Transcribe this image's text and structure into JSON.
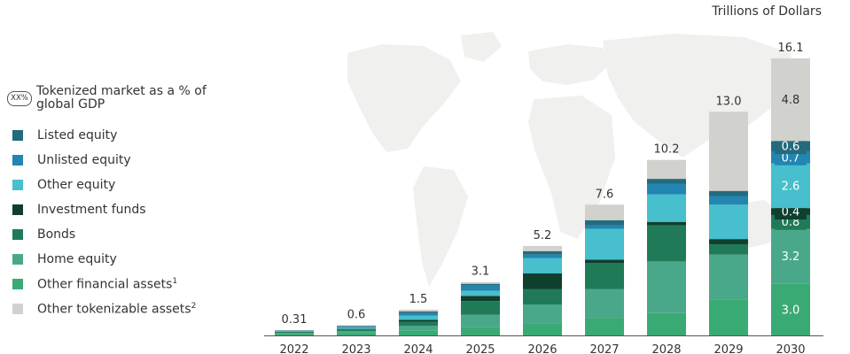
{
  "chart_data": {
    "type": "bar",
    "stacked": true,
    "unit_label": "Trillions of Dollars",
    "ylim": [
      0,
      16.1
    ],
    "badge": "XX%",
    "legend_title": "Tokenized market as a % of global GDP",
    "categories": [
      "2022",
      "2023",
      "2024",
      "2025",
      "2026",
      "2027",
      "2028",
      "2029",
      "2030"
    ],
    "totals": [
      "0.31",
      "0.6",
      "1.5",
      "3.1",
      "5.2",
      "7.6",
      "10.2",
      "13.0",
      "16.1"
    ],
    "series": [
      {
        "name": "Other financial assets",
        "note": "1",
        "color": "#3aaa74",
        "values": [
          0.1,
          0.15,
          0.3,
          0.5,
          0.7,
          1.0,
          1.3,
          2.1,
          3.0
        ],
        "labels": [
          "",
          "",
          "",
          "",
          "",
          "",
          "",
          "",
          "3.0"
        ]
      },
      {
        "name": "Home equity",
        "color": "#4aa88a",
        "values": [
          0.06,
          0.1,
          0.25,
          0.7,
          1.1,
          1.7,
          3.0,
          2.6,
          3.2
        ],
        "labels": [
          "",
          "",
          "",
          "",
          "",
          "",
          "",
          "",
          "3.2"
        ]
      },
      {
        "name": "Bonds",
        "color": "#207a58",
        "values": [
          0.05,
          0.1,
          0.25,
          0.8,
          0.9,
          1.5,
          2.1,
          0.6,
          0.8
        ],
        "labels": [
          "",
          "",
          "",
          "",
          "",
          "",
          "",
          "",
          "0.8"
        ]
      },
      {
        "name": "Investment funds",
        "color": "#0f3f2d",
        "values": [
          0.01,
          0.03,
          0.1,
          0.3,
          0.9,
          0.2,
          0.2,
          0.3,
          0.4
        ],
        "labels": [
          "",
          "",
          "",
          "",
          "",
          "",
          "",
          "",
          "0.4"
        ]
      },
      {
        "name": "Other equity",
        "color": "#47bfcc",
        "values": [
          0.03,
          0.07,
          0.25,
          0.3,
          0.9,
          1.8,
          1.6,
          2.0,
          2.6
        ],
        "labels": [
          "",
          "",
          "",
          "",
          "",
          "",
          "",
          "",
          "2.6"
        ]
      },
      {
        "name": "Unlisted equity",
        "color": "#2385b1",
        "values": [
          0.03,
          0.05,
          0.15,
          0.3,
          0.2,
          0.2,
          0.6,
          0.5,
          0.7
        ],
        "labels": [
          "",
          "",
          "",
          "",
          "",
          "",
          "",
          "",
          "0.7"
        ]
      },
      {
        "name": "Listed equity",
        "color": "#246b7e",
        "values": [
          0.02,
          0.05,
          0.1,
          0.1,
          0.2,
          0.3,
          0.3,
          0.3,
          0.6
        ],
        "labels": [
          "",
          "",
          "",
          "",
          "",
          "",
          "",
          "",
          "0.6"
        ]
      },
      {
        "name": "Other tokenizable assets",
        "note": "2",
        "color": "#d1d1ce",
        "values": [
          0.01,
          0.05,
          0.1,
          0.1,
          0.3,
          0.9,
          1.1,
          4.6,
          4.8
        ],
        "labels": [
          "",
          "",
          "",
          "",
          "",
          "",
          "",
          "",
          "4.8"
        ]
      }
    ]
  }
}
